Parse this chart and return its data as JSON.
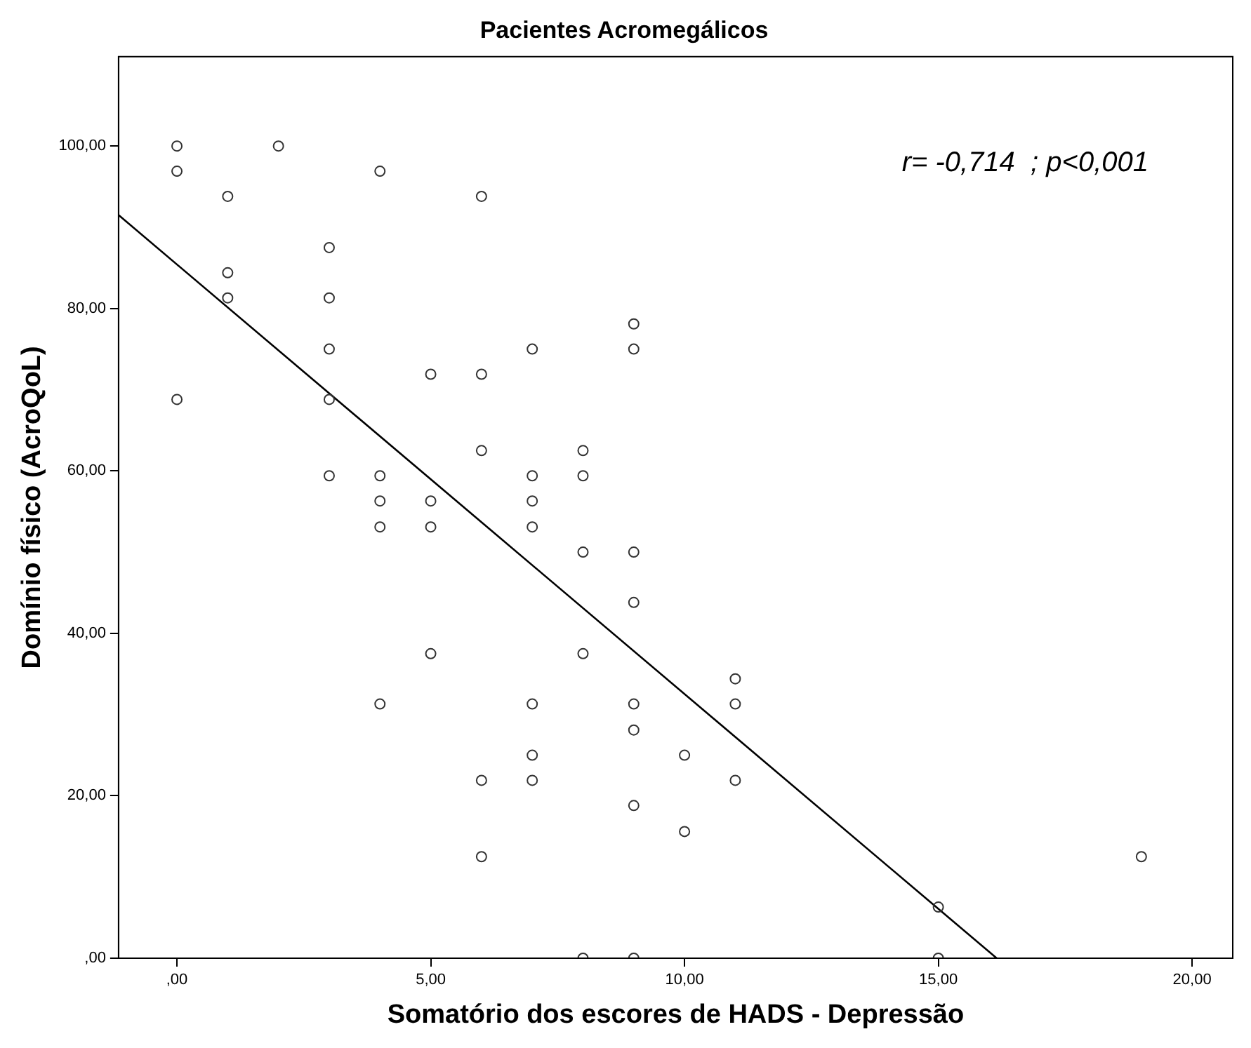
{
  "chart_data": {
    "type": "scatter",
    "title": "Pacientes Acromegálicos",
    "xlabel": "Somatório dos escores de HADS - Depressão",
    "ylabel": "Domínio físico (AcroQoL)",
    "annotations": [
      "r= -0,714  ; p<0,001"
    ],
    "xlim": [
      -1.15,
      20.8
    ],
    "ylim": [
      0,
      111
    ],
    "xticks": [
      {
        "value": 0,
        "label": ",00"
      },
      {
        "value": 5,
        "label": "5,00"
      },
      {
        "value": 10,
        "label": "10,00"
      },
      {
        "value": 15,
        "label": "15,00"
      },
      {
        "value": 20,
        "label": "20,00"
      }
    ],
    "yticks": [
      {
        "value": 0,
        "label": ",00"
      },
      {
        "value": 20,
        "label": "20,00"
      },
      {
        "value": 40,
        "label": "40,00"
      },
      {
        "value": 60,
        "label": "60,00"
      },
      {
        "value": 80,
        "label": "80,00"
      },
      {
        "value": 100,
        "label": "100,00"
      }
    ],
    "grid": false,
    "legend": false,
    "marker": "circle",
    "series": [
      {
        "type": "scatter",
        "color": "#333333",
        "x": [
          0,
          0,
          0,
          1,
          1,
          1,
          2,
          3,
          3,
          3,
          3,
          3,
          4,
          4,
          4,
          4,
          4,
          5,
          5,
          5,
          5,
          6,
          6,
          6,
          6,
          6,
          7,
          7,
          7,
          7,
          7,
          7,
          7,
          8,
          8,
          8,
          8,
          8,
          9,
          9,
          9,
          9,
          9,
          9,
          9,
          9,
          10,
          10,
          11,
          11,
          11,
          15,
          15,
          19
        ],
        "values": [
          100,
          96.9,
          68.8,
          93.8,
          84.4,
          81.3,
          100,
          87.5,
          81.3,
          75,
          68.8,
          59.4,
          96.9,
          59.4,
          56.3,
          53.1,
          31.3,
          71.9,
          56.3,
          53.1,
          37.5,
          93.8,
          71.9,
          62.5,
          21.9,
          12.5,
          75,
          59.4,
          56.3,
          53.1,
          31.3,
          25,
          21.9,
          62.5,
          59.4,
          50,
          37.5,
          0,
          78.1,
          75,
          50,
          43.8,
          31.3,
          28.1,
          18.8,
          0,
          25,
          15.6,
          34.4,
          31.3,
          21.9,
          6.3,
          0,
          12.5
        ]
      },
      {
        "type": "line",
        "color": "#000000",
        "line_style": "solid",
        "marker": "none",
        "x": [
          -1.15,
          16.15
        ],
        "values": [
          91.5,
          0
        ]
      }
    ]
  }
}
